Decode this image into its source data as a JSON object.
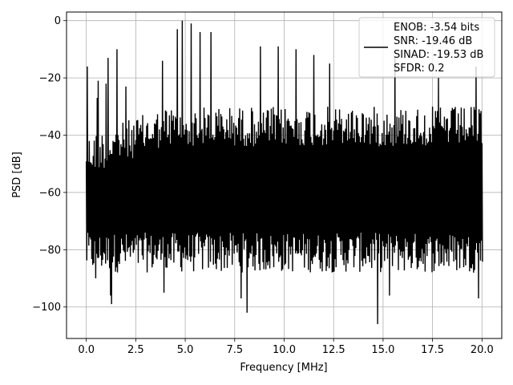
{
  "chart_data": {
    "type": "line",
    "title": "",
    "xlabel": "Frequency [MHz]",
    "ylabel": "PSD [dB]",
    "xlim": [
      -1,
      21
    ],
    "ylim": [
      -111,
      3
    ],
    "grid": true,
    "legend_placement": "top-right",
    "x_ticks": [
      0.0,
      2.5,
      5.0,
      7.5,
      10.0,
      12.5,
      15.0,
      17.5,
      20.0
    ],
    "x_tick_labels": [
      "0.0",
      "2.5",
      "5.0",
      "7.5",
      "10.0",
      "12.5",
      "15.0",
      "17.5",
      "20.0"
    ],
    "y_ticks": [
      0,
      -20,
      -40,
      -60,
      -80,
      -100
    ],
    "y_tick_labels": [
      "0",
      "−20",
      "−40",
      "−60",
      "−80",
      "−100"
    ],
    "series_color": "#000000",
    "legend": {
      "lines": [
        "ENOB: -3.54 bits",
        "SNR: -19.46 dB",
        "SINAD: -19.53 dB",
        "SFDR: 0.2"
      ]
    },
    "series": [
      {
        "x_range": [
          0,
          20
        ],
        "envelope_points": 401,
        "band_min_db": -100,
        "band_max_db": -30,
        "peaks": [
          {
            "x": 0.05,
            "y": -16
          },
          {
            "x": 0.55,
            "y": -27
          },
          {
            "x": 0.6,
            "y": -21
          },
          {
            "x": 1.0,
            "y": -22
          },
          {
            "x": 1.1,
            "y": -13
          },
          {
            "x": 1.55,
            "y": -10
          },
          {
            "x": 2.0,
            "y": -23
          },
          {
            "x": 3.85,
            "y": -14
          },
          {
            "x": 4.6,
            "y": -3
          },
          {
            "x": 4.85,
            "y": 0
          },
          {
            "x": 5.3,
            "y": -1
          },
          {
            "x": 5.75,
            "y": -4
          },
          {
            "x": 6.3,
            "y": -4
          },
          {
            "x": 8.8,
            "y": -9
          },
          {
            "x": 9.7,
            "y": -9
          },
          {
            "x": 10.6,
            "y": -10
          },
          {
            "x": 11.5,
            "y": -12
          },
          {
            "x": 12.3,
            "y": -15
          },
          {
            "x": 15.6,
            "y": -13
          },
          {
            "x": 17.8,
            "y": -20
          },
          {
            "x": 19.7,
            "y": -16
          }
        ],
        "dips": [
          {
            "x": 0.45,
            "y": -90
          },
          {
            "x": 1.2,
            "y": -96
          },
          {
            "x": 1.25,
            "y": -99
          },
          {
            "x": 3.9,
            "y": -95
          },
          {
            "x": 7.8,
            "y": -97
          },
          {
            "x": 8.1,
            "y": -102
          },
          {
            "x": 14.7,
            "y": -106
          },
          {
            "x": 15.3,
            "y": -96
          },
          {
            "x": 19.8,
            "y": -97
          }
        ]
      }
    ]
  }
}
